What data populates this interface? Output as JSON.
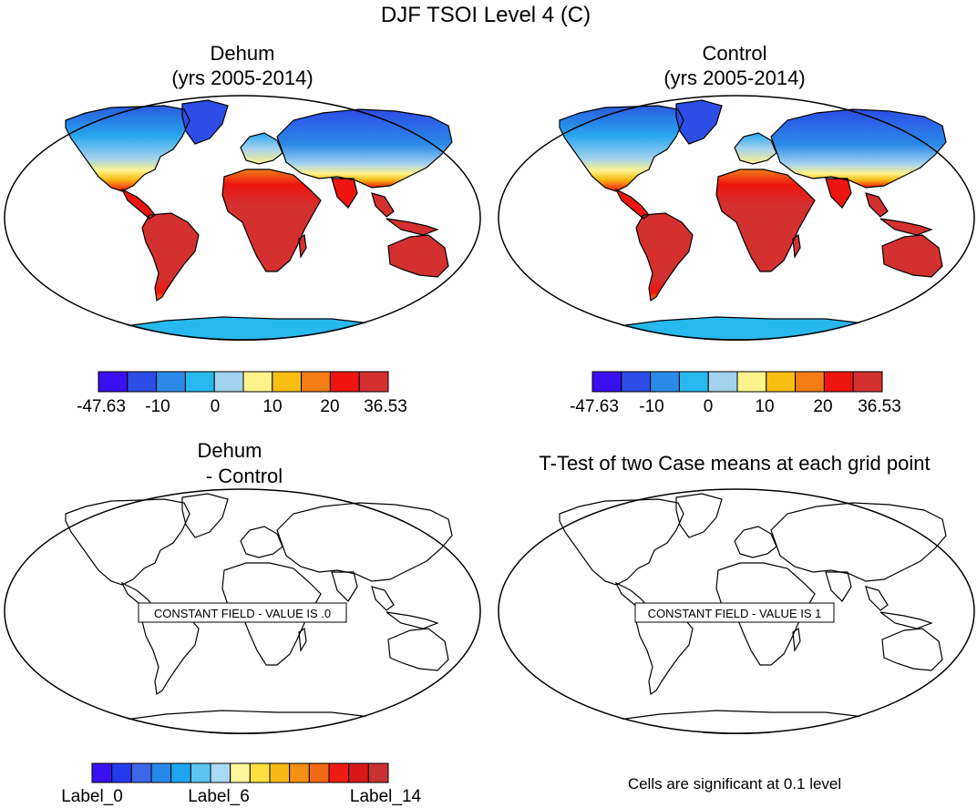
{
  "figure": {
    "title": "DJF TSOI Level 4 (C)"
  },
  "panels": {
    "dehum": {
      "title_line1": "Dehum",
      "title_line2": "(yrs 2005-2014)"
    },
    "control": {
      "title_line1": "Control",
      "title_line2": "(yrs 2005-2014)"
    },
    "difference": {
      "title_line1": "Dehum",
      "title_line2": "- Control",
      "message": "CONSTANT FIELD - VALUE IS .0"
    },
    "ttest": {
      "title": "T-Test of two Case means at each grid point",
      "message": "CONSTANT FIELD - VALUE IS 1",
      "footer": "Cells are significant at 0.1 level"
    }
  },
  "colorbars": {
    "temperature": {
      "colors": [
        "#3a10f0",
        "#2d4de6",
        "#2a8ae8",
        "#27b8ee",
        "#a3d2ee",
        "#fff38c",
        "#f8be14",
        "#f47d16",
        "#ee1510",
        "#d43030"
      ],
      "labels": [
        "-47.63",
        "-10",
        "0",
        "10",
        "20",
        "36.53"
      ]
    },
    "difference": {
      "colors": [
        "#3a10f0",
        "#2339ec",
        "#3d67e6",
        "#2688ea",
        "#1fa6f0",
        "#5cc4f0",
        "#a8daf4",
        "#fff59a",
        "#fde040",
        "#f9b915",
        "#f78f12",
        "#f36814",
        "#ef1b12",
        "#d81818",
        "#c83232"
      ],
      "labels": [
        "Label_0",
        "Label_6",
        "Label_14"
      ]
    }
  }
}
